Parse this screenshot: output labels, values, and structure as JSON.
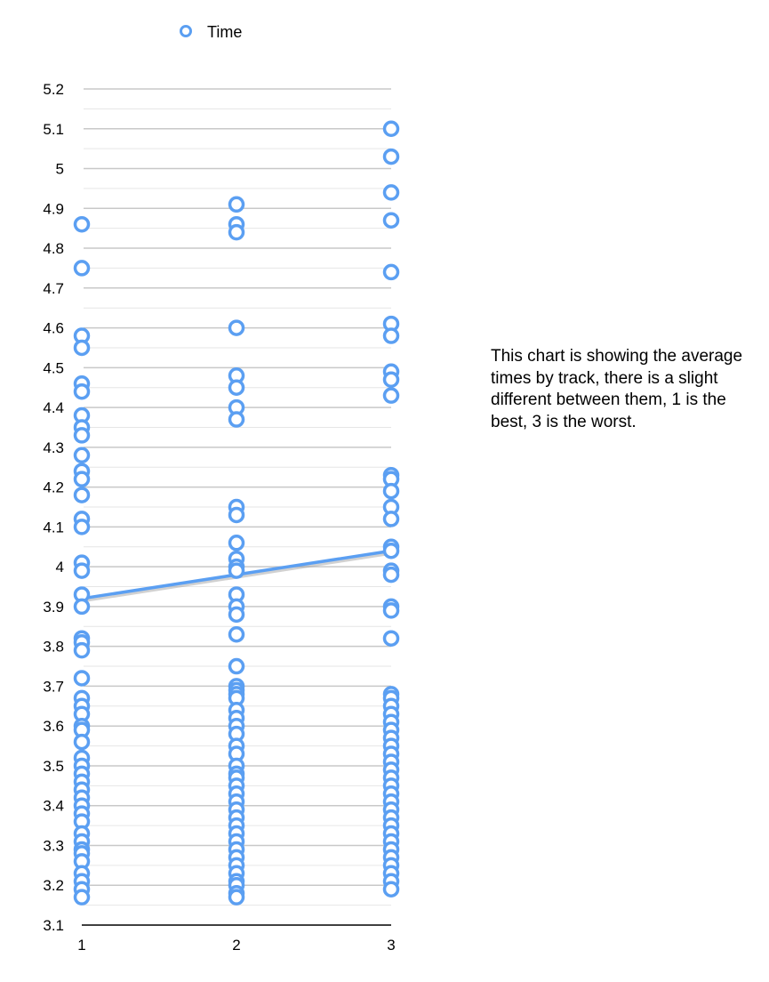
{
  "chart_data": {
    "type": "scatter",
    "title": "",
    "xlabel": "",
    "ylabel": "",
    "xlim": [
      1,
      3
    ],
    "ylim": [
      3.1,
      5.2
    ],
    "x_ticks": [
      "1",
      "2",
      "3"
    ],
    "y_ticks": [
      "3.1",
      "3.2",
      "3.3",
      "3.4",
      "3.5",
      "3.6",
      "3.7",
      "3.8",
      "3.9",
      "4",
      "4.1",
      "4.2",
      "4.3",
      "4.4",
      "4.5",
      "4.6",
      "4.7",
      "4.8",
      "4.9",
      "5",
      "5.1",
      "5.2"
    ],
    "grid": true,
    "legend": "top-left",
    "series": [
      {
        "name": "Time",
        "color": "#5b9ff2",
        "points": [
          {
            "x": 1,
            "y": 4.86
          },
          {
            "x": 1,
            "y": 4.75
          },
          {
            "x": 1,
            "y": 4.58
          },
          {
            "x": 1,
            "y": 4.55
          },
          {
            "x": 1,
            "y": 4.46
          },
          {
            "x": 1,
            "y": 4.44
          },
          {
            "x": 1,
            "y": 4.38
          },
          {
            "x": 1,
            "y": 4.35
          },
          {
            "x": 1,
            "y": 4.33
          },
          {
            "x": 1,
            "y": 4.28
          },
          {
            "x": 1,
            "y": 4.24
          },
          {
            "x": 1,
            "y": 4.22
          },
          {
            "x": 1,
            "y": 4.18
          },
          {
            "x": 1,
            "y": 4.12
          },
          {
            "x": 1,
            "y": 4.1
          },
          {
            "x": 1,
            "y": 4.01
          },
          {
            "x": 1,
            "y": 3.99
          },
          {
            "x": 1,
            "y": 3.93
          },
          {
            "x": 1,
            "y": 3.9
          },
          {
            "x": 1,
            "y": 3.82
          },
          {
            "x": 1,
            "y": 3.81
          },
          {
            "x": 1,
            "y": 3.79
          },
          {
            "x": 1,
            "y": 3.72
          },
          {
            "x": 1,
            "y": 3.67
          },
          {
            "x": 1,
            "y": 3.65
          },
          {
            "x": 1,
            "y": 3.63
          },
          {
            "x": 1,
            "y": 3.6
          },
          {
            "x": 1,
            "y": 3.59
          },
          {
            "x": 1,
            "y": 3.56
          },
          {
            "x": 1,
            "y": 3.52
          },
          {
            "x": 1,
            "y": 3.5
          },
          {
            "x": 1,
            "y": 3.48
          },
          {
            "x": 1,
            "y": 3.46
          },
          {
            "x": 1,
            "y": 3.44
          },
          {
            "x": 1,
            "y": 3.42
          },
          {
            "x": 1,
            "y": 3.4
          },
          {
            "x": 1,
            "y": 3.38
          },
          {
            "x": 1,
            "y": 3.36
          },
          {
            "x": 1,
            "y": 3.33
          },
          {
            "x": 1,
            "y": 3.31
          },
          {
            "x": 1,
            "y": 3.29
          },
          {
            "x": 1,
            "y": 3.28
          },
          {
            "x": 1,
            "y": 3.26
          },
          {
            "x": 1,
            "y": 3.23
          },
          {
            "x": 1,
            "y": 3.21
          },
          {
            "x": 1,
            "y": 3.19
          },
          {
            "x": 1,
            "y": 3.17
          },
          {
            "x": 2,
            "y": 4.91
          },
          {
            "x": 2,
            "y": 4.86
          },
          {
            "x": 2,
            "y": 4.84
          },
          {
            "x": 2,
            "y": 4.6
          },
          {
            "x": 2,
            "y": 4.48
          },
          {
            "x": 2,
            "y": 4.45
          },
          {
            "x": 2,
            "y": 4.4
          },
          {
            "x": 2,
            "y": 4.37
          },
          {
            "x": 2,
            "y": 4.15
          },
          {
            "x": 2,
            "y": 4.13
          },
          {
            "x": 2,
            "y": 4.06
          },
          {
            "x": 2,
            "y": 4.02
          },
          {
            "x": 2,
            "y": 4.0
          },
          {
            "x": 2,
            "y": 3.99
          },
          {
            "x": 2,
            "y": 3.93
          },
          {
            "x": 2,
            "y": 3.9
          },
          {
            "x": 2,
            "y": 3.88
          },
          {
            "x": 2,
            "y": 3.83
          },
          {
            "x": 2,
            "y": 3.75
          },
          {
            "x": 2,
            "y": 3.7
          },
          {
            "x": 2,
            "y": 3.69
          },
          {
            "x": 2,
            "y": 3.68
          },
          {
            "x": 2,
            "y": 3.67
          },
          {
            "x": 2,
            "y": 3.64
          },
          {
            "x": 2,
            "y": 3.62
          },
          {
            "x": 2,
            "y": 3.6
          },
          {
            "x": 2,
            "y": 3.58
          },
          {
            "x": 2,
            "y": 3.55
          },
          {
            "x": 2,
            "y": 3.53
          },
          {
            "x": 2,
            "y": 3.5
          },
          {
            "x": 2,
            "y": 3.48
          },
          {
            "x": 2,
            "y": 3.47
          },
          {
            "x": 2,
            "y": 3.45
          },
          {
            "x": 2,
            "y": 3.43
          },
          {
            "x": 2,
            "y": 3.41
          },
          {
            "x": 2,
            "y": 3.39
          },
          {
            "x": 2,
            "y": 3.37
          },
          {
            "x": 2,
            "y": 3.35
          },
          {
            "x": 2,
            "y": 3.33
          },
          {
            "x": 2,
            "y": 3.31
          },
          {
            "x": 2,
            "y": 3.29
          },
          {
            "x": 2,
            "y": 3.27
          },
          {
            "x": 2,
            "y": 3.25
          },
          {
            "x": 2,
            "y": 3.23
          },
          {
            "x": 2,
            "y": 3.21
          },
          {
            "x": 2,
            "y": 3.2
          },
          {
            "x": 2,
            "y": 3.18
          },
          {
            "x": 2,
            "y": 3.17
          },
          {
            "x": 3,
            "y": 5.1
          },
          {
            "x": 3,
            "y": 5.03
          },
          {
            "x": 3,
            "y": 4.94
          },
          {
            "x": 3,
            "y": 4.87
          },
          {
            "x": 3,
            "y": 4.74
          },
          {
            "x": 3,
            "y": 4.61
          },
          {
            "x": 3,
            "y": 4.58
          },
          {
            "x": 3,
            "y": 4.49
          },
          {
            "x": 3,
            "y": 4.47
          },
          {
            "x": 3,
            "y": 4.43
          },
          {
            "x": 3,
            "y": 4.23
          },
          {
            "x": 3,
            "y": 4.22
          },
          {
            "x": 3,
            "y": 4.19
          },
          {
            "x": 3,
            "y": 4.15
          },
          {
            "x": 3,
            "y": 4.12
          },
          {
            "x": 3,
            "y": 4.05
          },
          {
            "x": 3,
            "y": 4.04
          },
          {
            "x": 3,
            "y": 3.99
          },
          {
            "x": 3,
            "y": 3.98
          },
          {
            "x": 3,
            "y": 3.9
          },
          {
            "x": 3,
            "y": 3.89
          },
          {
            "x": 3,
            "y": 3.82
          },
          {
            "x": 3,
            "y": 3.68
          },
          {
            "x": 3,
            "y": 3.67
          },
          {
            "x": 3,
            "y": 3.65
          },
          {
            "x": 3,
            "y": 3.63
          },
          {
            "x": 3,
            "y": 3.61
          },
          {
            "x": 3,
            "y": 3.59
          },
          {
            "x": 3,
            "y": 3.57
          },
          {
            "x": 3,
            "y": 3.55
          },
          {
            "x": 3,
            "y": 3.53
          },
          {
            "x": 3,
            "y": 3.51
          },
          {
            "x": 3,
            "y": 3.49
          },
          {
            "x": 3,
            "y": 3.47
          },
          {
            "x": 3,
            "y": 3.45
          },
          {
            "x": 3,
            "y": 3.43
          },
          {
            "x": 3,
            "y": 3.41
          },
          {
            "x": 3,
            "y": 3.39
          },
          {
            "x": 3,
            "y": 3.37
          },
          {
            "x": 3,
            "y": 3.35
          },
          {
            "x": 3,
            "y": 3.33
          },
          {
            "x": 3,
            "y": 3.31
          },
          {
            "x": 3,
            "y": 3.29
          },
          {
            "x": 3,
            "y": 3.27
          },
          {
            "x": 3,
            "y": 3.25
          },
          {
            "x": 3,
            "y": 3.23
          },
          {
            "x": 3,
            "y": 3.21
          },
          {
            "x": 3,
            "y": 3.19
          }
        ]
      }
    ],
    "trendline": {
      "type": "linear",
      "color": "#5b9ff2",
      "from": {
        "x": 1,
        "y": 3.92
      },
      "to": {
        "x": 3,
        "y": 4.04
      }
    }
  },
  "note": {
    "text": "This chart is showing the average times by track, there is a slight different between them, 1 is the best, 3 is the worst."
  }
}
